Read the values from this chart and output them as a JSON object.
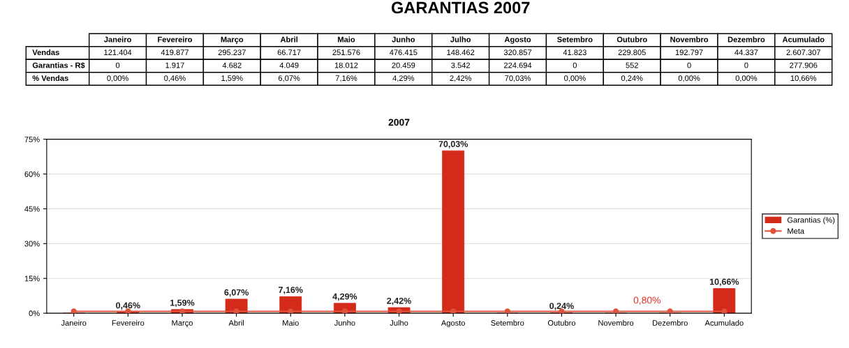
{
  "chart_data": [
    {
      "type": "other",
      "title": "GARANTIAS 2007",
      "categories": [
        "Janeiro",
        "Fevereiro",
        "Março",
        "Abril",
        "Maio",
        "Junho",
        "Julho",
        "Agosto",
        "Setembro",
        "Outubro",
        "Novembro",
        "Dezembro",
        "Acumulado"
      ],
      "series": [
        {
          "name": "Vendas",
          "values": [
            121404,
            419877,
            295237,
            66717,
            251576,
            476415,
            148462,
            320857,
            41823,
            229805,
            192797,
            44337,
            2607307
          ],
          "value_labels": [
            "121.404",
            "419.877",
            "295.237",
            "66.717",
            "251.576",
            "476.415",
            "148.462",
            "320.857",
            "41.823",
            "229.805",
            "192.797",
            "44.337",
            "2.607.307"
          ]
        },
        {
          "name": "Garantias - R$",
          "values": [
            0,
            1917,
            4682,
            4049,
            18012,
            20459,
            3542,
            224694,
            0,
            552,
            0,
            0,
            277906
          ],
          "value_labels": [
            "0",
            "1.917",
            "4.682",
            "4.049",
            "18.012",
            "20.459",
            "3.542",
            "224.694",
            "0",
            "552",
            "0",
            "0",
            "277.906"
          ]
        },
        {
          "name": "% Vendas",
          "values": [
            0,
            0.46,
            1.59,
            6.07,
            7.16,
            4.29,
            2.42,
            70.03,
            0,
            0.24,
            0,
            0,
            10.66
          ],
          "value_labels": [
            "0,00%",
            "0,46%",
            "1,59%",
            "6,07%",
            "7,16%",
            "4,29%",
            "2,42%",
            "70,03%",
            "0,00%",
            "0,24%",
            "0,00%",
            "0,00%",
            "10,66%"
          ]
        }
      ]
    },
    {
      "type": "bar",
      "title": "2007",
      "categories": [
        "Janeiro",
        "Fevereiro",
        "Março",
        "Abril",
        "Maio",
        "Junho",
        "Julho",
        "Agosto",
        "Setembro",
        "Outubro",
        "Novembro",
        "Dezembro",
        "Acumulado"
      ],
      "series": [
        {
          "name": "Garantias (%)",
          "color": "#d42a1a",
          "values": [
            0,
            0.46,
            1.59,
            6.07,
            7.16,
            4.29,
            2.42,
            70.03,
            0,
            0.24,
            0,
            0,
            10.66
          ],
          "value_labels": [
            null,
            "0,46%",
            "1,59%",
            "6,07%",
            "7,16%",
            "4,29%",
            "2,42%",
            "70,03%",
            null,
            "0,24%",
            null,
            null,
            "10,66%"
          ]
        },
        {
          "name": "Meta",
          "type": "line",
          "color": "#e0533a",
          "marker": "circle",
          "values": [
            0.8,
            0.8,
            0.8,
            0.8,
            0.8,
            0.8,
            0.8,
            0.8,
            0.8,
            0.8,
            0.8,
            0.8,
            0.8
          ]
        }
      ],
      "annotations": [
        {
          "text": "0,80%",
          "x": "Novembro",
          "y": 0.8
        }
      ],
      "ylim": [
        0,
        75
      ],
      "yticks": [
        {
          "value": 0,
          "label": "0%"
        },
        {
          "value": 15,
          "label": "15%"
        },
        {
          "value": 30,
          "label": "30%"
        },
        {
          "value": 45,
          "label": "45%"
        },
        {
          "value": 60,
          "label": "60%"
        },
        {
          "value": 75,
          "label": "75%"
        }
      ],
      "grid": "y",
      "legend": "right"
    }
  ]
}
